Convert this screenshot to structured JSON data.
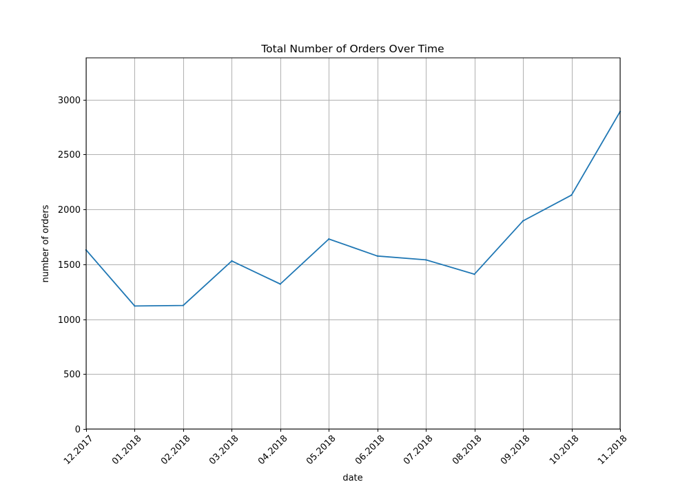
{
  "chart_data": {
    "type": "line",
    "title": "Total Number of Orders Over Time",
    "xlabel": "date",
    "ylabel": "number of orders",
    "categories": [
      "12.2017",
      "01.2018",
      "02.2018",
      "03.2018",
      "04.2018",
      "05.2018",
      "06.2018",
      "07.2018",
      "08.2018",
      "09.2018",
      "10.2018",
      "11.2018"
    ],
    "series": [
      {
        "color": "#1f77b4",
        "values": [
          1630,
          1120,
          1125,
          1530,
          1320,
          1730,
          1575,
          1540,
          1410,
          1895,
          2130,
          2890
        ]
      }
    ],
    "ylim": [
      0,
      3380
    ],
    "yticks": [
      0,
      500,
      1000,
      1500,
      2000,
      2500,
      3000
    ],
    "grid": true,
    "legend": "none"
  }
}
